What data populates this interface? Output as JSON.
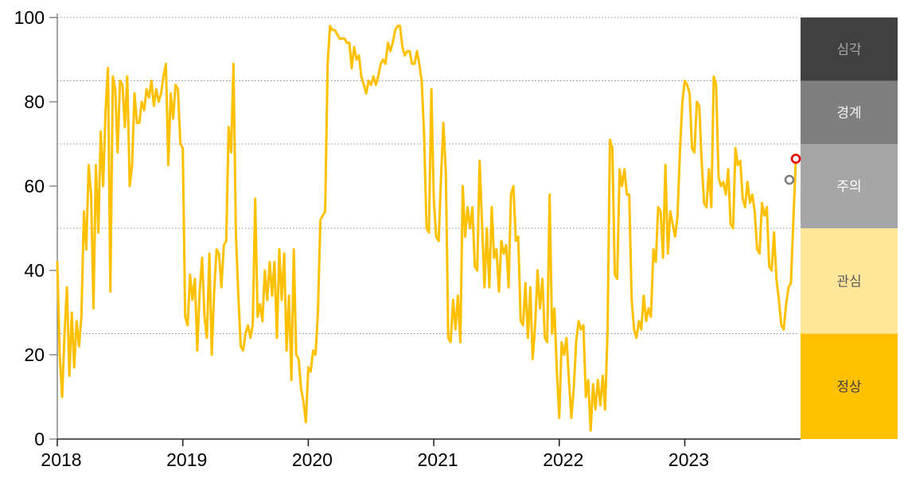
{
  "chart_data": {
    "type": "line",
    "title": "",
    "x_axis": {
      "tick_labels": [
        "2018",
        "2019",
        "2020",
        "2021",
        "2022",
        "2023"
      ],
      "tick_values": [
        2018,
        2019,
        2020,
        2021,
        2022,
        2023
      ],
      "range": [
        2018,
        2023.885
      ]
    },
    "y_axis": {
      "tick_labels": [
        "0",
        "20",
        "40",
        "60",
        "80",
        "100"
      ],
      "tick_values": [
        0,
        20,
        40,
        60,
        80,
        100
      ],
      "range": [
        0,
        100
      ]
    },
    "gridlines_y": [
      25,
      50,
      70,
      85,
      100
    ],
    "grid_color": "#8c8c8c",
    "line_color": "#FFC000",
    "axis_color_x": "#262626",
    "axis_color_y": "#7f7f7f",
    "legend_position": "right",
    "bands": [
      {
        "label": "심각",
        "from": 85,
        "to": 100,
        "color": "#404040",
        "label_color": "#a6a6a6"
      },
      {
        "label": "경계",
        "from": 70,
        "to": 85,
        "color": "#7f7f7f",
        "label_color": "#f2f2f2"
      },
      {
        "label": "주의",
        "from": 50,
        "to": 70,
        "color": "#a6a6a6",
        "label_color": "#ffffff"
      },
      {
        "label": "관심",
        "from": 25,
        "to": 50,
        "color": "#ffe699",
        "label_color": "#595959"
      },
      {
        "label": "정상",
        "from": 0,
        "to": 25,
        "color": "#ffc000",
        "label_color": "#404040"
      }
    ],
    "series": [
      {
        "name": "index",
        "start_year": 2018,
        "points_per_year": 52,
        "values": [
          42,
          20,
          10,
          25,
          36,
          15,
          30,
          17,
          28,
          22,
          29,
          54,
          45,
          65,
          58,
          31,
          65,
          49,
          73,
          60,
          78,
          88,
          35,
          86,
          83,
          68,
          85,
          84,
          74,
          86,
          60,
          65,
          82,
          75,
          75,
          80,
          78,
          83,
          81,
          85,
          79,
          83,
          80,
          82,
          86,
          89,
          65,
          82,
          76,
          84,
          83,
          70,
          69,
          29,
          27,
          39,
          33,
          38,
          21,
          35,
          43,
          29,
          24,
          44,
          20,
          35,
          45,
          44,
          36,
          46,
          47,
          74,
          68,
          89,
          49,
          34,
          22,
          21,
          25,
          27,
          24,
          27,
          57,
          29,
          32,
          28,
          40,
          33,
          42,
          34,
          42,
          24,
          45,
          33,
          44,
          21,
          34,
          14,
          45,
          20,
          19,
          12,
          9,
          4,
          17,
          16,
          21,
          20,
          30,
          52,
          53,
          54,
          89,
          98,
          97,
          97,
          96,
          95,
          95,
          95,
          94,
          94,
          88,
          93,
          90,
          91,
          86,
          84,
          82,
          85,
          84,
          86,
          84,
          86,
          89,
          90,
          89,
          94,
          92,
          94,
          97,
          98,
          98,
          93,
          91,
          92,
          92,
          89,
          89,
          92,
          89,
          85,
          72,
          50,
          49,
          83,
          57,
          48,
          47,
          62,
          75,
          63,
          24,
          23,
          33,
          26,
          34,
          23,
          60,
          48,
          55,
          50,
          55,
          41,
          40,
          66,
          51,
          36,
          50,
          36,
          55,
          43,
          45,
          35,
          47,
          44,
          46,
          36,
          58,
          60,
          47,
          48,
          28,
          27,
          37,
          24,
          36,
          19,
          27,
          40,
          31,
          38,
          24,
          23,
          58,
          25,
          31,
          16,
          5,
          23,
          20,
          24,
          14,
          5,
          12,
          23,
          28,
          26,
          27,
          10,
          14,
          2,
          13,
          7,
          14,
          8,
          15,
          7,
          26,
          71,
          69,
          39,
          38,
          64,
          60,
          64,
          58,
          58,
          33,
          26,
          24,
          28,
          26,
          34,
          28,
          31,
          29,
          45,
          42,
          55,
          54,
          43,
          65,
          44,
          54,
          51,
          48,
          53,
          68,
          80,
          85,
          84,
          82,
          69,
          68,
          80,
          79,
          66,
          56,
          55,
          64,
          55,
          86,
          84,
          62,
          60,
          61,
          58,
          64,
          51,
          50,
          69,
          65,
          66,
          57,
          55,
          61,
          56,
          58,
          54,
          45,
          44,
          56,
          53,
          55,
          41,
          40,
          49,
          38,
          33,
          27,
          26,
          32,
          36,
          37,
          52,
          66
        ]
      }
    ],
    "markers": [
      {
        "name": "latest",
        "year": 2023.885,
        "value": 66.5,
        "ring_color": "#e60000"
      },
      {
        "name": "previous",
        "year": 2023.834,
        "value": 61.5,
        "ring_color": "#7f7f7f"
      }
    ]
  }
}
